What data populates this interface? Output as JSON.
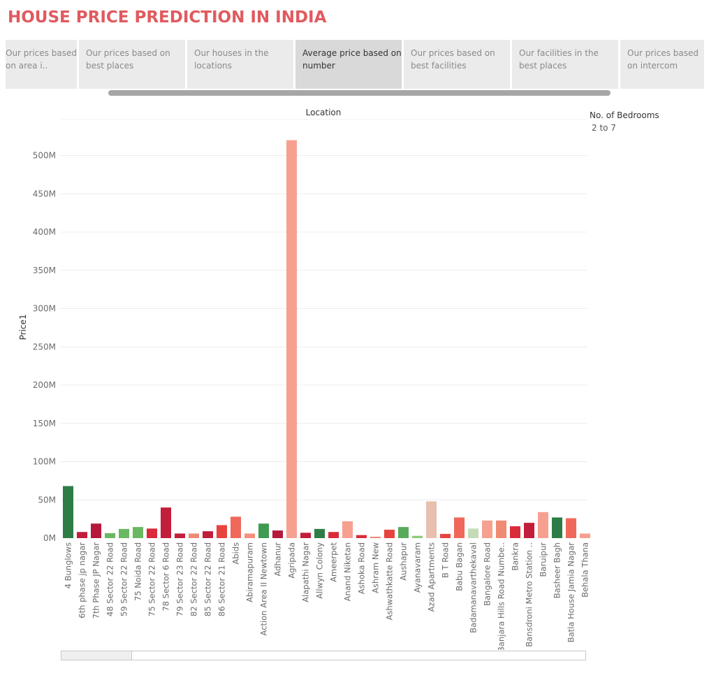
{
  "header": {
    "title": "HOUSE PRICE PREDICTION IN INDIA"
  },
  "tabs": [
    {
      "label": "Our prices based on area i..",
      "active": false
    },
    {
      "label": "Our prices based on best places",
      "active": false
    },
    {
      "label": "Our houses in the locations",
      "active": false
    },
    {
      "label": "Average price based on number",
      "active": true
    },
    {
      "label": "Our prices based on best facilities",
      "active": false
    },
    {
      "label": "Our facilities in the best places",
      "active": false
    },
    {
      "label": "Our prices based on intercom",
      "active": false
    }
  ],
  "legend": {
    "title": "No. of Bedrooms",
    "value": "2 to 7"
  },
  "chart_data": {
    "type": "bar",
    "title": "",
    "xlabel": "Location",
    "ylabel": "Price1",
    "ylim": [
      0,
      550000000
    ],
    "yticks": [
      0,
      50000000,
      100000000,
      150000000,
      200000000,
      250000000,
      300000000,
      350000000,
      400000000,
      450000000,
      500000000
    ],
    "ytick_labels": [
      "0M",
      "50M",
      "100M",
      "150M",
      "200M",
      "250M",
      "300M",
      "350M",
      "400M",
      "450M",
      "500M"
    ],
    "grid": true,
    "categories": [
      "4 Bunglows",
      "6th phase jp nagar",
      "7th Phase JP Nagar",
      "48 Sector 22 Road",
      "59 Sector 22 Road",
      "75 Noida Road",
      "75 Sector 22 Road",
      "78 Sector 6 Road",
      "79 Sector 23 Road",
      "82 Sector 22 Road",
      "85 Sector 22 Road",
      "86 Sector 21 Road",
      "Abids",
      "Abiramapuram",
      "Action Area II Newtown",
      "Adhanur",
      "Agripada",
      "Alapathi Nagar",
      "Allwyn Colony",
      "Ameerpet",
      "Anand Niketan",
      "Ashoka Road",
      "Ashram New",
      "Ashwathkatte Road",
      "Aushapur",
      "Ayanavaram",
      "Azad Apartments",
      "B T Road",
      "Babu Bagan",
      "Badamanavarthekaval",
      "Bangalore Road",
      "Banjara Hills Road Numbe..",
      "Bankra",
      "Bansdroni Metro Station ..",
      "Baruipur",
      "Basheer Bagh",
      "Batla House Jamia Nagar",
      "Behala Thana"
    ],
    "values": [
      68000000,
      8000000,
      19000000,
      6500000,
      12000000,
      14500000,
      12500000,
      40000000,
      6000000,
      6000000,
      9000000,
      17000000,
      28000000,
      6000000,
      19000000,
      10000000,
      520000000,
      7000000,
      12000000,
      8000000,
      22000000,
      4000000,
      1500000,
      11000000,
      14500000,
      3000000,
      48000000,
      5500000,
      27000000,
      12500000,
      23000000,
      23000000,
      15500000,
      20000000,
      34000000,
      27000000,
      26000000,
      6000000
    ],
    "colors": [
      "#2e7d46",
      "#c21d3a",
      "#b5183a",
      "#6ab862",
      "#6ab862",
      "#6ab862",
      "#d92b3a",
      "#c21d3a",
      "#c21d3a",
      "#f08b73",
      "#c21d3a",
      "#e8443f",
      "#f0685a",
      "#f5907c",
      "#3f9a52",
      "#b5183a",
      "#f7a090",
      "#c21d3a",
      "#2e7d46",
      "#d92b3a",
      "#f7a090",
      "#d92b3a",
      "#f08b73",
      "#e8443f",
      "#5aaa5c",
      "#8fcb7a",
      "#e8bfb0",
      "#e8443f",
      "#f0685a",
      "#c4dbb8",
      "#f7a090",
      "#f08b73",
      "#d92b3a",
      "#c21d3a",
      "#f7a090",
      "#2e7d46",
      "#f0685a",
      "#f7a090"
    ]
  }
}
